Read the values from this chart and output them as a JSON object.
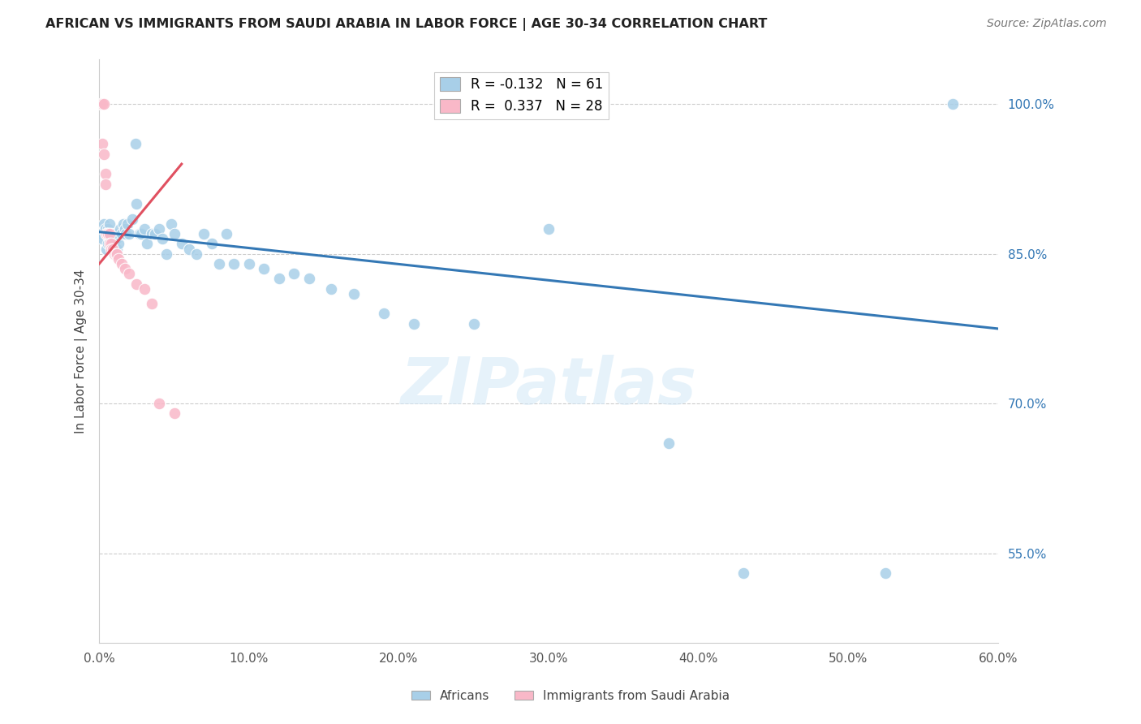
{
  "title": "AFRICAN VS IMMIGRANTS FROM SAUDI ARABIA IN LABOR FORCE | AGE 30-34 CORRELATION CHART",
  "source": "Source: ZipAtlas.com",
  "ylabel": "In Labor Force | Age 30-34",
  "xmin": 0.0,
  "xmax": 0.6,
  "ymin": 0.46,
  "ymax": 1.045,
  "yticks": [
    0.55,
    0.7,
    0.85,
    1.0
  ],
  "ytick_labels": [
    "55.0%",
    "70.0%",
    "85.0%",
    "100.0%"
  ],
  "xticks": [
    0.0,
    0.1,
    0.2,
    0.3,
    0.4,
    0.5,
    0.6
  ],
  "xtick_labels": [
    "0.0%",
    "10.0%",
    "20.0%",
    "30.0%",
    "40.0%",
    "50.0%",
    "60.0%"
  ],
  "blue_color": "#a8cfe8",
  "pink_color": "#f9b8c8",
  "trend_blue": "#3478b5",
  "trend_pink": "#e05060",
  "legend_R_blue": "-0.132",
  "legend_N_blue": "61",
  "legend_R_pink": "0.337",
  "legend_N_pink": "28",
  "africans_label": "Africans",
  "saudi_label": "Immigrants from Saudi Arabia",
  "watermark": "ZIPatlas",
  "blue_trend_x0": 0.0,
  "blue_trend_x1": 0.6,
  "blue_trend_y0": 0.872,
  "blue_trend_y1": 0.775,
  "pink_trend_x0": 0.0,
  "pink_trend_x1": 0.055,
  "pink_trend_y0": 0.84,
  "pink_trend_y1": 0.94,
  "blue_points_x": [
    0.001,
    0.002,
    0.003,
    0.004,
    0.005,
    0.005,
    0.006,
    0.006,
    0.007,
    0.007,
    0.008,
    0.009,
    0.01,
    0.01,
    0.011,
    0.012,
    0.013,
    0.014,
    0.015,
    0.016,
    0.017,
    0.018,
    0.019,
    0.02,
    0.022,
    0.024,
    0.025,
    0.027,
    0.028,
    0.03,
    0.032,
    0.035,
    0.037,
    0.04,
    0.042,
    0.045,
    0.048,
    0.05,
    0.055,
    0.06,
    0.065,
    0.07,
    0.075,
    0.08,
    0.085,
    0.09,
    0.1,
    0.11,
    0.12,
    0.13,
    0.14,
    0.155,
    0.17,
    0.19,
    0.21,
    0.25,
    0.3,
    0.38,
    0.43,
    0.525,
    0.57
  ],
  "blue_points_y": [
    0.87,
    0.865,
    0.88,
    0.875,
    0.87,
    0.855,
    0.875,
    0.86,
    0.88,
    0.865,
    0.87,
    0.86,
    0.87,
    0.855,
    0.865,
    0.855,
    0.86,
    0.875,
    0.87,
    0.88,
    0.875,
    0.87,
    0.88,
    0.87,
    0.885,
    0.96,
    0.9,
    0.87,
    0.87,
    0.875,
    0.86,
    0.87,
    0.87,
    0.875,
    0.865,
    0.85,
    0.88,
    0.87,
    0.86,
    0.855,
    0.85,
    0.87,
    0.86,
    0.84,
    0.87,
    0.84,
    0.84,
    0.835,
    0.825,
    0.83,
    0.825,
    0.815,
    0.81,
    0.79,
    0.78,
    0.78,
    0.875,
    0.66,
    0.53,
    0.53,
    1.0
  ],
  "pink_points_x": [
    0.001,
    0.002,
    0.002,
    0.003,
    0.003,
    0.004,
    0.004,
    0.005,
    0.005,
    0.006,
    0.006,
    0.007,
    0.007,
    0.008,
    0.008,
    0.009,
    0.01,
    0.011,
    0.012,
    0.013,
    0.015,
    0.017,
    0.02,
    0.025,
    0.03,
    0.035,
    0.04,
    0.05
  ],
  "pink_points_y": [
    1.0,
    1.0,
    0.96,
    1.0,
    0.95,
    0.93,
    0.92,
    0.87,
    0.87,
    0.87,
    0.87,
    0.87,
    0.86,
    0.86,
    0.855,
    0.855,
    0.85,
    0.85,
    0.85,
    0.845,
    0.84,
    0.835,
    0.83,
    0.82,
    0.815,
    0.8,
    0.7,
    0.69
  ]
}
